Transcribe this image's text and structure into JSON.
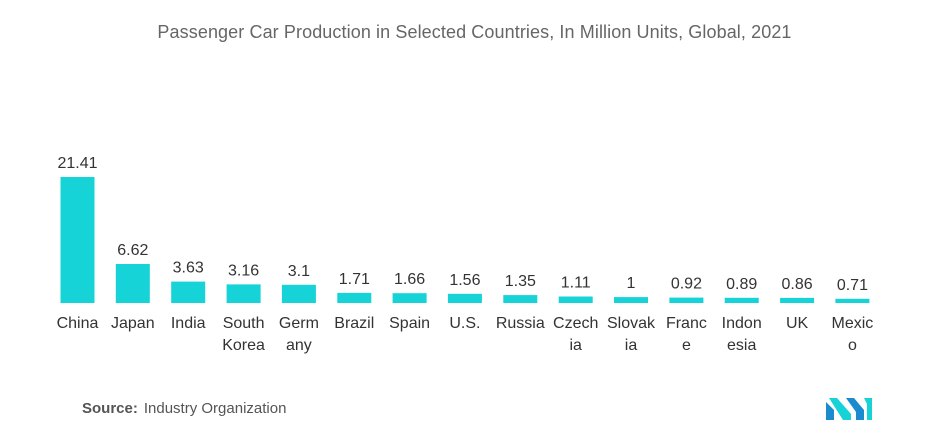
{
  "chart_data": {
    "type": "bar",
    "title": "Passenger Car Production in Selected Countries, In Million Units, Global, 2021",
    "categories": [
      "China",
      "Japan",
      "India",
      "South Korea",
      "Germany",
      "Brazil",
      "Spain",
      "U.S.",
      "Russia",
      "Czechia",
      "Slovakia",
      "France",
      "Indonesia",
      "UK",
      "Mexico"
    ],
    "category_display_lines": [
      [
        "China"
      ],
      [
        "Japan"
      ],
      [
        "India"
      ],
      [
        "South",
        "Korea"
      ],
      [
        "Germ",
        "any"
      ],
      [
        "Brazil"
      ],
      [
        "Spain"
      ],
      [
        "U.S."
      ],
      [
        "Russia"
      ],
      [
        "Czech",
        "ia"
      ],
      [
        "Slovak",
        "ia"
      ],
      [
        "Franc",
        "e"
      ],
      [
        "Indon",
        "esia"
      ],
      [
        "UK"
      ],
      [
        "Mexic",
        "o"
      ]
    ],
    "values": [
      21.41,
      6.62,
      3.63,
      3.16,
      3.1,
      1.71,
      1.66,
      1.56,
      1.35,
      1.11,
      1,
      0.92,
      0.89,
      0.86,
      0.71
    ],
    "value_labels": [
      "21.41",
      "6.62",
      "3.63",
      "3.16",
      "3.1",
      "1.71",
      "1.66",
      "1.56",
      "1.35",
      "1.11",
      "1",
      "0.92",
      "0.89",
      "0.86",
      "0.71"
    ],
    "xlabel": "",
    "ylabel": "",
    "grid": false,
    "bar_color": "#15d3d6"
  },
  "source": {
    "label": "Source:",
    "text": "Industry Organization"
  },
  "logo": {
    "icon": "mordor-intelligence-logo-icon",
    "colors": [
      "#1b8bd0",
      "#15d3d6"
    ]
  }
}
